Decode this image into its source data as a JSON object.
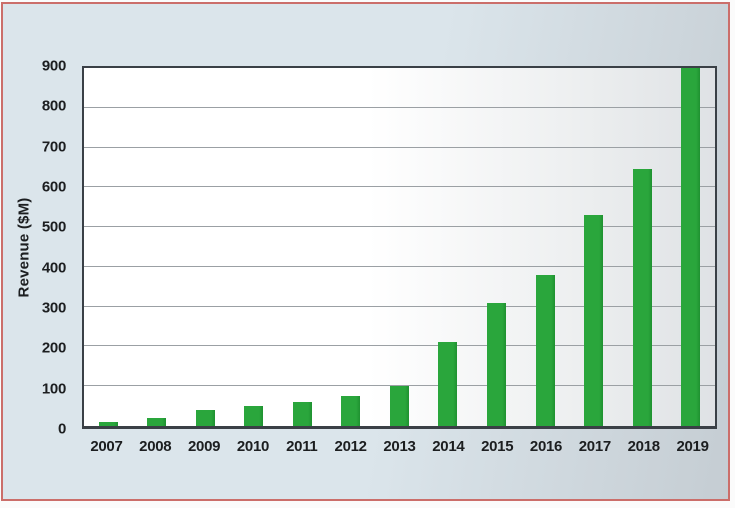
{
  "colors": {
    "bar": "#2aa63c",
    "bar_edge": "#1f9130",
    "card_border": "#cb6e6a",
    "card_bg_left": "#dbe5eb",
    "card_bg_right": "#c5cdd3",
    "plot_bg_left": "#ffffff",
    "plot_bg_right": "#dfe2e5",
    "gridline": "#9ba0a4",
    "axis_frame": "#3a4046",
    "text": "#1c1e20"
  },
  "chart_data": {
    "type": "bar",
    "categories": [
      "2007",
      "2008",
      "2009",
      "2010",
      "2011",
      "2012",
      "2013",
      "2014",
      "2015",
      "2016",
      "2017",
      "2018",
      "2019"
    ],
    "values": [
      10,
      20,
      40,
      50,
      60,
      75,
      100,
      210,
      310,
      380,
      530,
      645,
      900
    ],
    "xlabel": "",
    "ylabel": "Revenue ($M)",
    "ylim": [
      0,
      900
    ],
    "yticks": [
      0,
      100,
      200,
      300,
      400,
      500,
      600,
      700,
      800,
      900
    ],
    "grid": "horizontal",
    "legend": "none"
  }
}
